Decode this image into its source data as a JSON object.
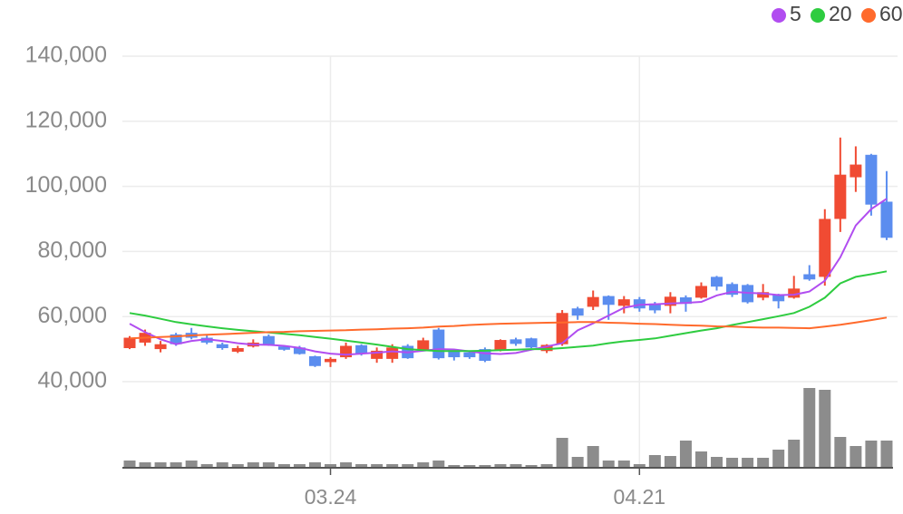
{
  "chart_data": {
    "type": "candlestick",
    "categories": [
      null,
      null,
      null,
      null,
      null,
      null,
      null,
      null,
      null,
      null,
      null,
      null,
      null,
      "03.24",
      null,
      null,
      null,
      null,
      null,
      null,
      null,
      null,
      null,
      null,
      null,
      null,
      null,
      null,
      null,
      null,
      null,
      null,
      null,
      "04.21",
      null,
      null,
      null,
      null,
      null,
      null,
      null,
      null,
      null,
      null,
      null,
      null,
      null,
      null,
      null,
      null
    ],
    "open": [
      50300,
      52000,
      50000,
      54500,
      55000,
      53500,
      51500,
      49200,
      50800,
      54000,
      50800,
      50500,
      47800,
      46000,
      47500,
      51200,
      47000,
      47000,
      51000,
      49800,
      56000,
      49700,
      49000,
      50000,
      49500,
      53000,
      53300,
      49400,
      51500,
      62500,
      63000,
      66300,
      63300,
      65300,
      64000,
      63300,
      65900,
      65800,
      72200,
      70000,
      69700,
      65800,
      66700,
      65800,
      73000,
      72200,
      90000,
      102800,
      109700,
      95300
    ],
    "high": [
      54000,
      56000,
      52500,
      55000,
      56500,
      54500,
      52000,
      51000,
      53000,
      54500,
      51000,
      51000,
      48000,
      47500,
      52000,
      51500,
      50500,
      51500,
      51500,
      53500,
      56500,
      50000,
      49500,
      50500,
      53000,
      53500,
      53500,
      51500,
      62000,
      63000,
      68000,
      66500,
      66300,
      66000,
      64500,
      67500,
      66500,
      70500,
      72500,
      70500,
      70000,
      70000,
      67000,
      72500,
      75800,
      93000,
      115000,
      112300,
      110000,
      104700
    ],
    "low": [
      50000,
      51000,
      49000,
      51000,
      53000,
      51500,
      49800,
      48800,
      50500,
      51000,
      49500,
      48300,
      44500,
      44500,
      47000,
      48000,
      45800,
      45800,
      47000,
      49500,
      46800,
      46500,
      47000,
      46000,
      49300,
      51000,
      50300,
      48800,
      51000,
      59000,
      62000,
      59000,
      61000,
      61500,
      61000,
      61000,
      61500,
      65500,
      68000,
      66000,
      64000,
      65000,
      62500,
      65500,
      71000,
      69500,
      86000,
      98300,
      91000,
      83500
    ],
    "close": [
      53500,
      55000,
      51500,
      51500,
      53500,
      52000,
      50300,
      50300,
      52000,
      51200,
      49800,
      48500,
      44800,
      47000,
      51000,
      48500,
      49500,
      50500,
      47200,
      52700,
      47200,
      47500,
      47500,
      46400,
      52800,
      51600,
      50500,
      51300,
      61100,
      60300,
      66000,
      63600,
      65300,
      62500,
      61900,
      66100,
      63900,
      69400,
      69200,
      66700,
      64400,
      67500,
      64700,
      68600,
      71400,
      90000,
      103600,
      106700,
      94400,
      84200
    ],
    "up_color": "#f04b33",
    "down_color": "#5b8def",
    "series": [
      {
        "name": "5",
        "color": "#b14df0",
        "values": [
          57800,
          55200,
          53000,
          51500,
          52500,
          53000,
          52500,
          51800,
          51400,
          51300,
          51000,
          50400,
          49300,
          48600,
          48300,
          48600,
          48900,
          49300,
          49000,
          49500,
          50000,
          49900,
          49300,
          48700,
          48500,
          48800,
          49800,
          50800,
          51800,
          55800,
          57900,
          60300,
          62700,
          63600,
          63800,
          64000,
          64200,
          64500,
          66500,
          67600,
          67300,
          67100,
          66600,
          66700,
          67700,
          71000,
          78200,
          88000,
          93000,
          96200
        ]
      },
      {
        "name": "20",
        "color": "#2ecc40",
        "values": [
          61100,
          60300,
          59300,
          58300,
          57600,
          57000,
          56400,
          55900,
          55500,
          55100,
          54700,
          54300,
          53700,
          53200,
          52600,
          52000,
          51400,
          50700,
          50000,
          49700,
          49400,
          49400,
          49400,
          49500,
          49700,
          49800,
          50000,
          50000,
          50300,
          50700,
          51100,
          51800,
          52400,
          52800,
          53300,
          54100,
          54900,
          55700,
          56400,
          57400,
          58300,
          59200,
          60100,
          61100,
          63000,
          65800,
          70200,
          72200,
          73000,
          73900
        ]
      },
      {
        "name": "60",
        "color": "#ff6a2c",
        "values": [
          53300,
          53500,
          53700,
          53900,
          54200,
          54400,
          54600,
          54800,
          55000,
          55200,
          55300,
          55500,
          55600,
          55700,
          55800,
          56000,
          56100,
          56300,
          56400,
          56600,
          56900,
          57100,
          57400,
          57600,
          57800,
          57900,
          58000,
          58100,
          58200,
          58300,
          58300,
          58100,
          58000,
          57800,
          57700,
          57500,
          57300,
          57200,
          57000,
          56900,
          56700,
          56600,
          56600,
          56500,
          56400,
          56900,
          57500,
          58200,
          58900,
          59700
        ]
      }
    ],
    "volume": {
      "color": "#8c8c8c",
      "values": [
        8,
        6,
        6,
        6,
        8,
        4,
        6,
        4,
        6,
        6,
        4,
        4,
        6,
        4,
        6,
        4,
        4,
        4,
        4,
        6,
        8,
        3,
        3,
        3,
        4,
        4,
        3,
        4,
        33,
        12,
        24,
        8,
        8,
        4,
        14,
        13,
        30,
        18,
        12,
        11,
        11,
        11,
        20,
        31,
        88,
        86,
        34,
        24,
        30,
        30
      ]
    },
    "ylim": [
      40000,
      140000
    ],
    "yticks": [
      {
        "value": 40000,
        "label": "40,000"
      },
      {
        "value": 60000,
        "label": "60,000"
      },
      {
        "value": 80000,
        "label": "80,000"
      },
      {
        "value": 100000,
        "label": "100,000"
      },
      {
        "value": 120000,
        "label": "120,000"
      },
      {
        "value": 140000,
        "label": "140,000"
      }
    ],
    "grid": true,
    "legend": "top-right"
  }
}
